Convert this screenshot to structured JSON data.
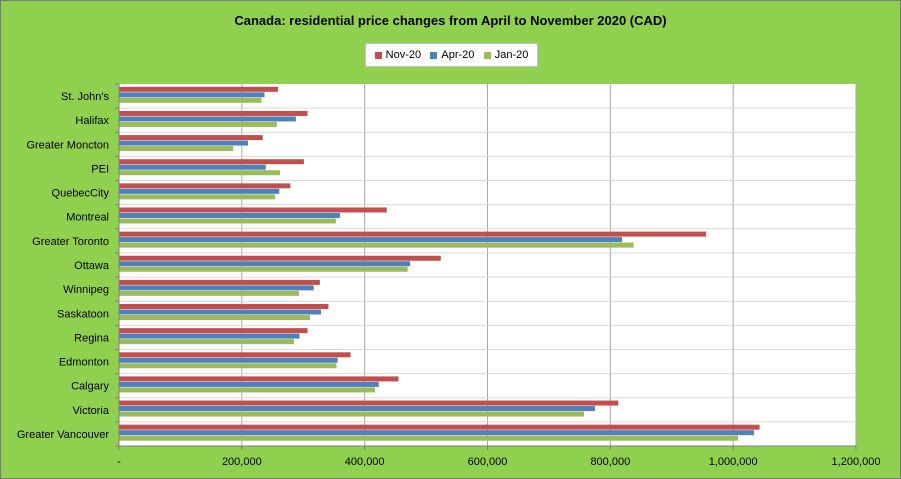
{
  "chart_data": {
    "type": "bar",
    "orientation": "horizontal",
    "title": "Canada: residential price changes from April to November 2020 (CAD)",
    "categories": [
      "St. John's",
      "Halifax",
      "Greater Moncton",
      "PEI",
      "QuebecCity",
      "Montreal",
      "Greater Toronto",
      "Ottawa",
      "Winnipeg",
      "Saskatoon",
      "Regina",
      "Edmonton",
      "Calgary",
      "Victoria",
      "Greater Vancouver"
    ],
    "series": [
      {
        "name": "Nov-20",
        "color": "#c0504d",
        "values": [
          259000,
          307000,
          234000,
          301000,
          279000,
          436000,
          956000,
          524000,
          327000,
          341000,
          307000,
          377000,
          455000,
          813000,
          1043000
        ]
      },
      {
        "name": "Apr-20",
        "color": "#4f81bd",
        "values": [
          237000,
          288000,
          210000,
          239000,
          261000,
          360000,
          819000,
          474000,
          317000,
          329000,
          294000,
          356000,
          423000,
          775000,
          1034000
        ]
      },
      {
        "name": "Jan-20",
        "color": "#9bbb59",
        "values": [
          232000,
          257000,
          186000,
          262000,
          254000,
          353000,
          838000,
          470000,
          293000,
          311000,
          285000,
          354000,
          417000,
          757000,
          1008000
        ]
      }
    ],
    "xlim": [
      0,
      1200000
    ],
    "x_ticks": [
      0,
      200000,
      400000,
      600000,
      800000,
      1000000,
      1200000
    ],
    "x_tick_labels": [
      "-",
      "200,000",
      "400,000",
      "600,000",
      "800,000",
      "1,000,000",
      "1,200,000"
    ],
    "xlabel": "",
    "ylabel": "",
    "grid": "vertical",
    "legend": "top-center",
    "plot_background": "#ffffff",
    "chart_background": "#8fd14f",
    "gridline_color": "#a6a6a6"
  }
}
